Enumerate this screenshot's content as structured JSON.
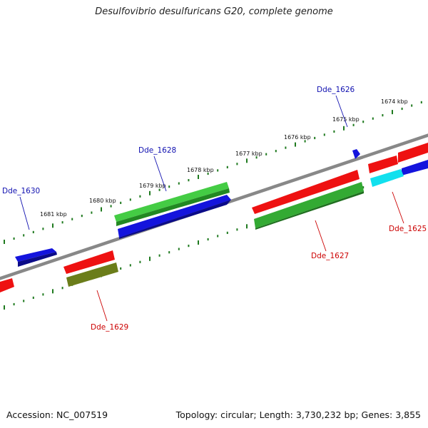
{
  "header": {
    "title": "Desulfovibrio desulfuricans G20, complete genome"
  },
  "footer": {
    "accession": "Accession: NC_007519",
    "topology": "Topology: circular; Length: 3,730,232 bp; Genes: 3,855"
  },
  "map": {
    "colors": {
      "backbone": "#888888",
      "ticks": "#1f7a1f",
      "label_top_strand": "#1010b0",
      "label_bottom_strand": "#cc0000",
      "red": "#ee1111",
      "blue": "#1414dd",
      "green": "#33bb33",
      "darkgreen": "#2f8f2f",
      "olive": "#6b7d1a",
      "cyan": "#11e0ee"
    },
    "kbp_ticks": [
      "1681 kbp",
      "1680 kbp",
      "1679 kbp",
      "1678 kbp",
      "1677 kbp",
      "1676 kbp",
      "1675 kbp",
      "1674 kbp"
    ],
    "gene_labels": [
      {
        "text": "Dde_1626",
        "strand": "top"
      },
      {
        "text": "Dde_1628",
        "strand": "top"
      },
      {
        "text": "Dde_1630",
        "strand": "top"
      },
      {
        "text": "Dde_1625",
        "strand": "bottom"
      },
      {
        "text": "Dde_1627",
        "strand": "bottom"
      },
      {
        "text": "Dde_1629",
        "strand": "bottom"
      }
    ]
  }
}
